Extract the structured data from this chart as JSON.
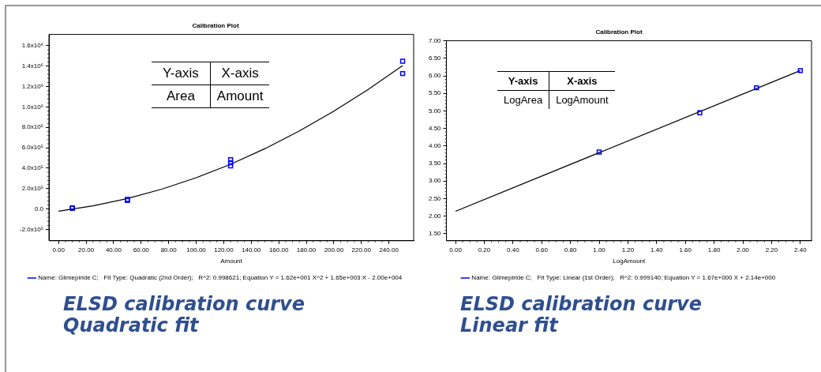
{
  "chart_data": [
    {
      "type": "scatter",
      "title": "Calibration Plot",
      "xlabel": "Amount",
      "legend": "bottom",
      "grid": false,
      "xlim": [
        -7,
        258
      ],
      "xticks": [
        {
          "value": 0,
          "label": "0.00"
        },
        {
          "value": 20,
          "label": "20.00"
        },
        {
          "value": 40,
          "label": "40.00"
        },
        {
          "value": 60,
          "label": "60.00"
        },
        {
          "value": 80,
          "label": "80.00"
        },
        {
          "value": 100,
          "label": "100.00"
        },
        {
          "value": 120,
          "label": "120.00"
        },
        {
          "value": 140,
          "label": "140.00"
        },
        {
          "value": 160,
          "label": "160.00"
        },
        {
          "value": 180,
          "label": "180.00"
        },
        {
          "value": 200,
          "label": "200.00"
        },
        {
          "value": 220,
          "label": "220.00"
        },
        {
          "value": 240,
          "label": "240.00"
        }
      ],
      "ylim": [
        -310000,
        1710000
      ],
      "yticks": [
        {
          "value": -200000,
          "label": "-2.0x10⁵"
        },
        {
          "value": 0,
          "label": "0.0"
        },
        {
          "value": 200000,
          "label": "2.0x10⁵"
        },
        {
          "value": 400000,
          "label": "4.0x10⁵"
        },
        {
          "value": 600000,
          "label": "6.0x10⁵"
        },
        {
          "value": 800000,
          "label": "8.0x10⁵"
        },
        {
          "value": 1000000,
          "label": "1.0x10⁶"
        },
        {
          "value": 1200000,
          "label": "1.2x10⁶"
        },
        {
          "value": 1400000,
          "label": "1.4x10⁶"
        },
        {
          "value": 1600000,
          "label": "1.6x10⁶"
        }
      ],
      "series": [
        {
          "name": "Name: Glimepiride C;   Fit Type: Quadratic (2nd Order);   R^2: 0.998621; Equation Y = 1.62e+001 X^2 + 1.65e+003 X - 2.00e+004",
          "color": "#0000ff",
          "marker": "square",
          "x": [
            10,
            10,
            50,
            50,
            125,
            125,
            125,
            250,
            250
          ],
          "values": [
            12000,
            8000,
            95000,
            85000,
            484000,
            453000,
            423000,
            1448000,
            1327000
          ]
        },
        {
          "type": "line",
          "color": "#000000",
          "marker": "none",
          "x": [
            0,
            25,
            50,
            75,
            100,
            125,
            150,
            175,
            200,
            225,
            250
          ],
          "values": [
            -20000,
            31000,
            103000,
            195000,
            307000,
            439000,
            592000,
            765000,
            958000,
            1171000,
            1405000
          ]
        }
      ],
      "annotations": [
        "Y-axis",
        "X-axis",
        "Area",
        "Amount",
        "ELSD calibration curve Quadratic fit"
      ]
    },
    {
      "type": "scatter",
      "title": "Calibration Plot",
      "xlabel": "LogAmount",
      "legend": "bottom",
      "grid": false,
      "xlim": [
        -0.063,
        2.478
      ],
      "xticks": [
        {
          "value": 0,
          "label": "0.00"
        },
        {
          "value": 0.2,
          "label": "0.20"
        },
        {
          "value": 0.4,
          "label": "0.40"
        },
        {
          "value": 0.6,
          "label": "0.60"
        },
        {
          "value": 0.8,
          "label": "0.80"
        },
        {
          "value": 1,
          "label": "1.00"
        },
        {
          "value": 1.2,
          "label": "1.20"
        },
        {
          "value": 1.4,
          "label": "1.40"
        },
        {
          "value": 1.6,
          "label": "1.60"
        },
        {
          "value": 1.8,
          "label": "1.80"
        },
        {
          "value": 2,
          "label": "2.00"
        },
        {
          "value": 2.2,
          "label": "2.20"
        },
        {
          "value": 2.4,
          "label": "2.40"
        }
      ],
      "ylim": [
        1.3,
        7.0
      ],
      "yticks": [
        {
          "value": 1.5,
          "label": "1.50"
        },
        {
          "value": 2,
          "label": "2.00"
        },
        {
          "value": 2.5,
          "label": "2.50"
        },
        {
          "value": 3,
          "label": "3.00"
        },
        {
          "value": 3.5,
          "label": "3.50"
        },
        {
          "value": 4,
          "label": "4.00"
        },
        {
          "value": 4.5,
          "label": "4.50"
        },
        {
          "value": 5,
          "label": "5.00"
        },
        {
          "value": 5.5,
          "label": "5.50"
        },
        {
          "value": 6,
          "label": "6.00"
        },
        {
          "value": 6.5,
          "label": "6.50"
        },
        {
          "value": 7,
          "label": "7.00"
        }
      ],
      "series": [
        {
          "name": "Name: Glimepiride C;   Fit Type: Linear (1st Order);   R^2: 0.999140; Equation Y = 1.67e+000 X + 2.14e+000",
          "color": "#0000ff",
          "marker": "square",
          "x": [
            1.0,
            1.7,
            2.095,
            2.4
          ],
          "values": [
            3.83,
            4.95,
            5.66,
            6.15
          ]
        },
        {
          "type": "line",
          "color": "#000000",
          "marker": "none",
          "x": [
            0,
            2.4
          ],
          "values": [
            2.14,
            6.15
          ]
        }
      ],
      "annotations": [
        "Y-axis",
        "X-axis",
        "LogArea",
        "LogAmount",
        "ELSD calibration curve Linear fit"
      ]
    }
  ]
}
